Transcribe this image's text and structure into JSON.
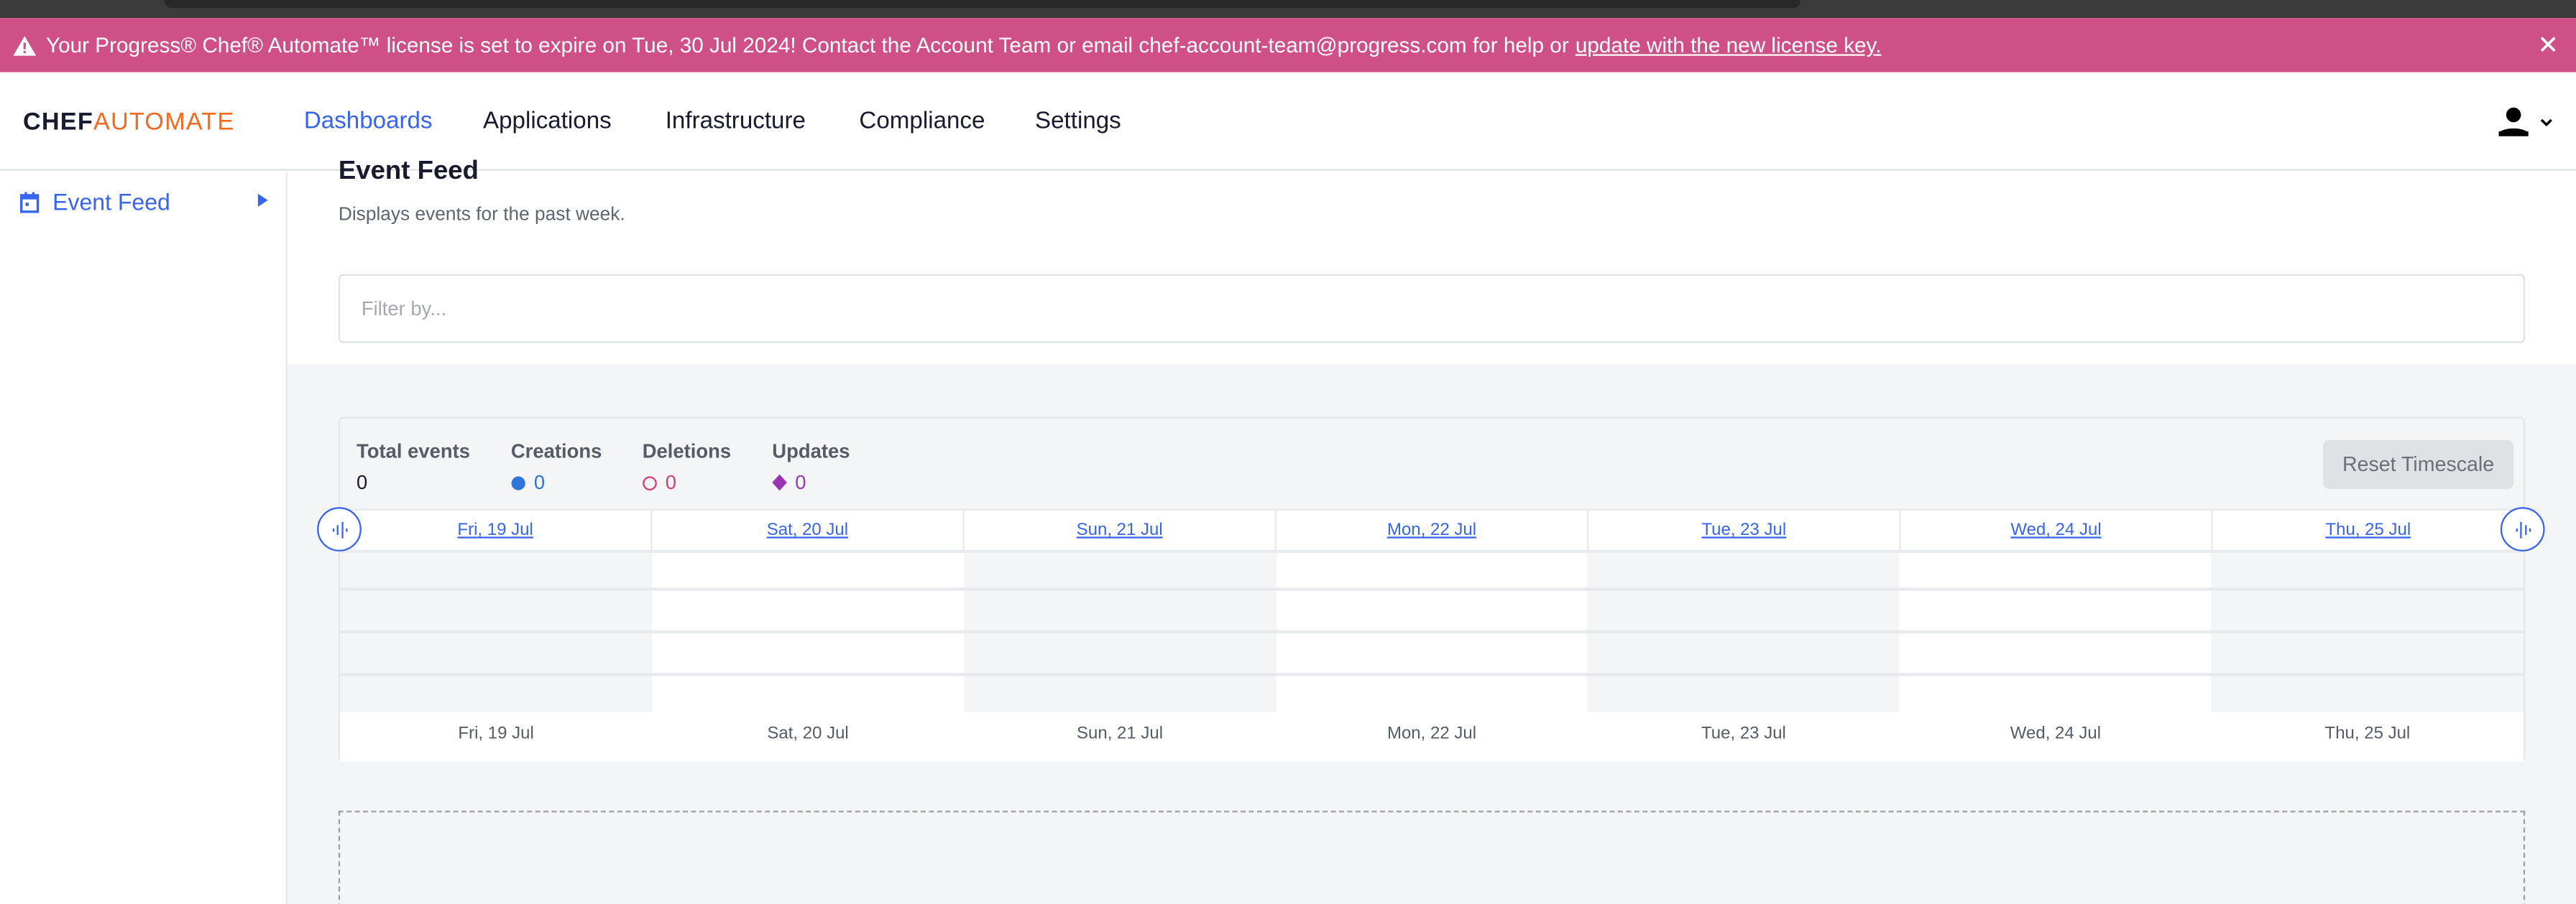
{
  "banner": {
    "text": "Your Progress® Chef® Automate™ license is set to expire on Tue, 30 Jul 2024! Contact the Account Team or email chef-account-team@progress.com for help or",
    "link": "update with the new license key.",
    "color": "#cf4f87"
  },
  "logo": {
    "part1": "CHEF",
    "part2": "AUTOMATE"
  },
  "nav": {
    "items": [
      {
        "label": "Dashboards",
        "active": true
      },
      {
        "label": "Applications"
      },
      {
        "label": "Infrastructure"
      },
      {
        "label": "Compliance"
      },
      {
        "label": "Settings"
      }
    ]
  },
  "sidebar": {
    "items": [
      {
        "label": "Event Feed",
        "icon": "calendar-icon"
      }
    ]
  },
  "page": {
    "title": "Event Feed",
    "description": "Displays events for the past week.",
    "filter_placeholder": "Filter by..."
  },
  "stats": {
    "total": {
      "label": "Total events",
      "value": "0"
    },
    "creations": {
      "label": "Creations",
      "value": "0",
      "color": "#2f74d8"
    },
    "deletions": {
      "label": "Deletions",
      "value": "0",
      "color": "#d63c7a"
    },
    "updates": {
      "label": "Updates",
      "value": "0",
      "color": "#9b35b5"
    }
  },
  "reset_label": "Reset Timescale",
  "days": [
    "Fri, 19 Jul",
    "Sat, 20 Jul",
    "Sun, 21 Jul",
    "Mon, 22 Jul",
    "Tue, 23 Jul",
    "Wed, 24 Jul",
    "Thu, 25 Jul"
  ],
  "accent": "#3864f2"
}
